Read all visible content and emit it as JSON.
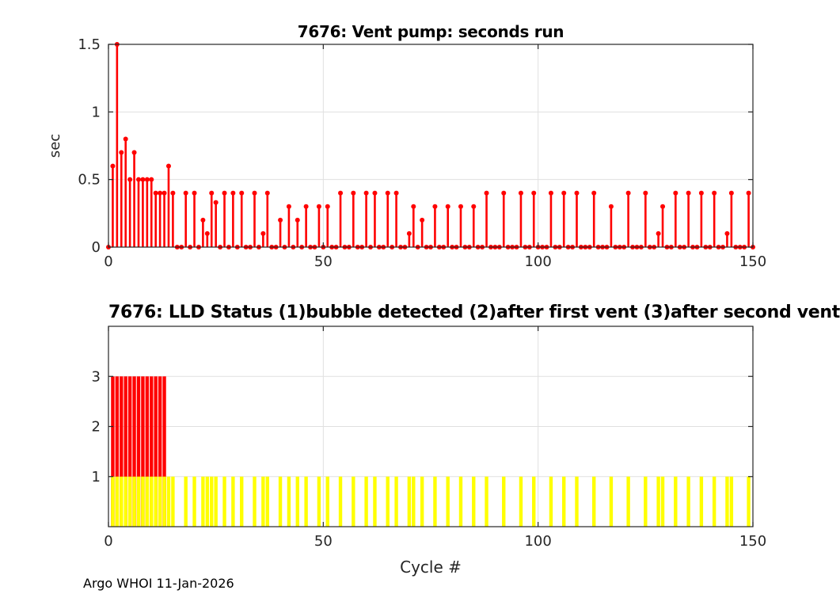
{
  "figure": {
    "background": "#ffffff",
    "footer": "Argo WHOI 11-Jan-2026",
    "xlabel": "Cycle #",
    "axis_color": "#262626",
    "grid_color": "#e0e0e0"
  },
  "chart_data": [
    {
      "type": "stem",
      "title": "7676: Vent pump: seconds run",
      "ylabel": "sec",
      "color": "#ff0000",
      "grid": true,
      "xlim": [
        0,
        150
      ],
      "ylim": [
        0,
        1.5
      ],
      "x_ticks": [
        0,
        50,
        100,
        150
      ],
      "y_ticks": [
        0,
        0.5,
        1,
        1.5
      ],
      "first_cycle": 0,
      "values": [
        0,
        0.6,
        1.5,
        0.7,
        0.8,
        0.5,
        0.7,
        0.5,
        0.5,
        0.5,
        0.5,
        0.4,
        0.4,
        0.4,
        0.6,
        0.4,
        0,
        0,
        0.4,
        0,
        0.4,
        0,
        0.2,
        0.1,
        0.4,
        0.33,
        0,
        0.4,
        0,
        0.4,
        0,
        0.4,
        0,
        0,
        0.4,
        0,
        0.1,
        0.4,
        0,
        0,
        0.2,
        0,
        0.3,
        0,
        0.2,
        0,
        0.3,
        0,
        0,
        0.3,
        0,
        0.3,
        0,
        0,
        0.4,
        0,
        0,
        0.4,
        0,
        0,
        0.4,
        0,
        0.4,
        0,
        0,
        0.4,
        0,
        0.4,
        0,
        0,
        0.1,
        0.3,
        0,
        0.2,
        0,
        0,
        0.3,
        0,
        0,
        0.3,
        0,
        0,
        0.3,
        0,
        0,
        0.3,
        0,
        0,
        0.4,
        0,
        0,
        0,
        0.4,
        0,
        0,
        0,
        0.4,
        0,
        0,
        0.4,
        0,
        0,
        0,
        0.4,
        0,
        0,
        0.4,
        0,
        0,
        0.4,
        0,
        0,
        0,
        0.4,
        0,
        0,
        0,
        0.3,
        0,
        0,
        0,
        0.4,
        0,
        0,
        0,
        0.4,
        0,
        0,
        0.1,
        0.3,
        0,
        0,
        0.4,
        0,
        0,
        0.4,
        0,
        0,
        0.4,
        0,
        0,
        0.4,
        0,
        0,
        0.1,
        0.4,
        0,
        0,
        0,
        0.4,
        0
      ]
    },
    {
      "type": "bar",
      "title": "7676: LLD Status   (1)bubble detected   (2)after first vent  (3)after second vent",
      "grid": true,
      "xlim": [
        0,
        150
      ],
      "ylim": [
        0,
        4
      ],
      "x_ticks": [
        0,
        50,
        100,
        150
      ],
      "y_ticks": [
        1,
        2,
        3
      ],
      "series": [
        {
          "name": "status-3-after-second-vent",
          "color": "#ff0000",
          "value": 3,
          "cycles": [
            1,
            2,
            3,
            4,
            5,
            6,
            7,
            8,
            9,
            10,
            11,
            12,
            13
          ]
        },
        {
          "name": "status-1-bubble-detected",
          "color": "#ffff00",
          "value": 1,
          "cycles": [
            1,
            2,
            3,
            4,
            5,
            6,
            7,
            8,
            9,
            10,
            11,
            12,
            13,
            14,
            15,
            18,
            20,
            22,
            23,
            24,
            25,
            27,
            29,
            31,
            34,
            36,
            37,
            40,
            42,
            44,
            46,
            49,
            51,
            54,
            57,
            60,
            62,
            65,
            67,
            70,
            71,
            73,
            76,
            79,
            82,
            85,
            88,
            92,
            96,
            99,
            103,
            106,
            109,
            113,
            117,
            121,
            125,
            128,
            129,
            132,
            135,
            138,
            141,
            144,
            145,
            149
          ]
        }
      ]
    }
  ]
}
